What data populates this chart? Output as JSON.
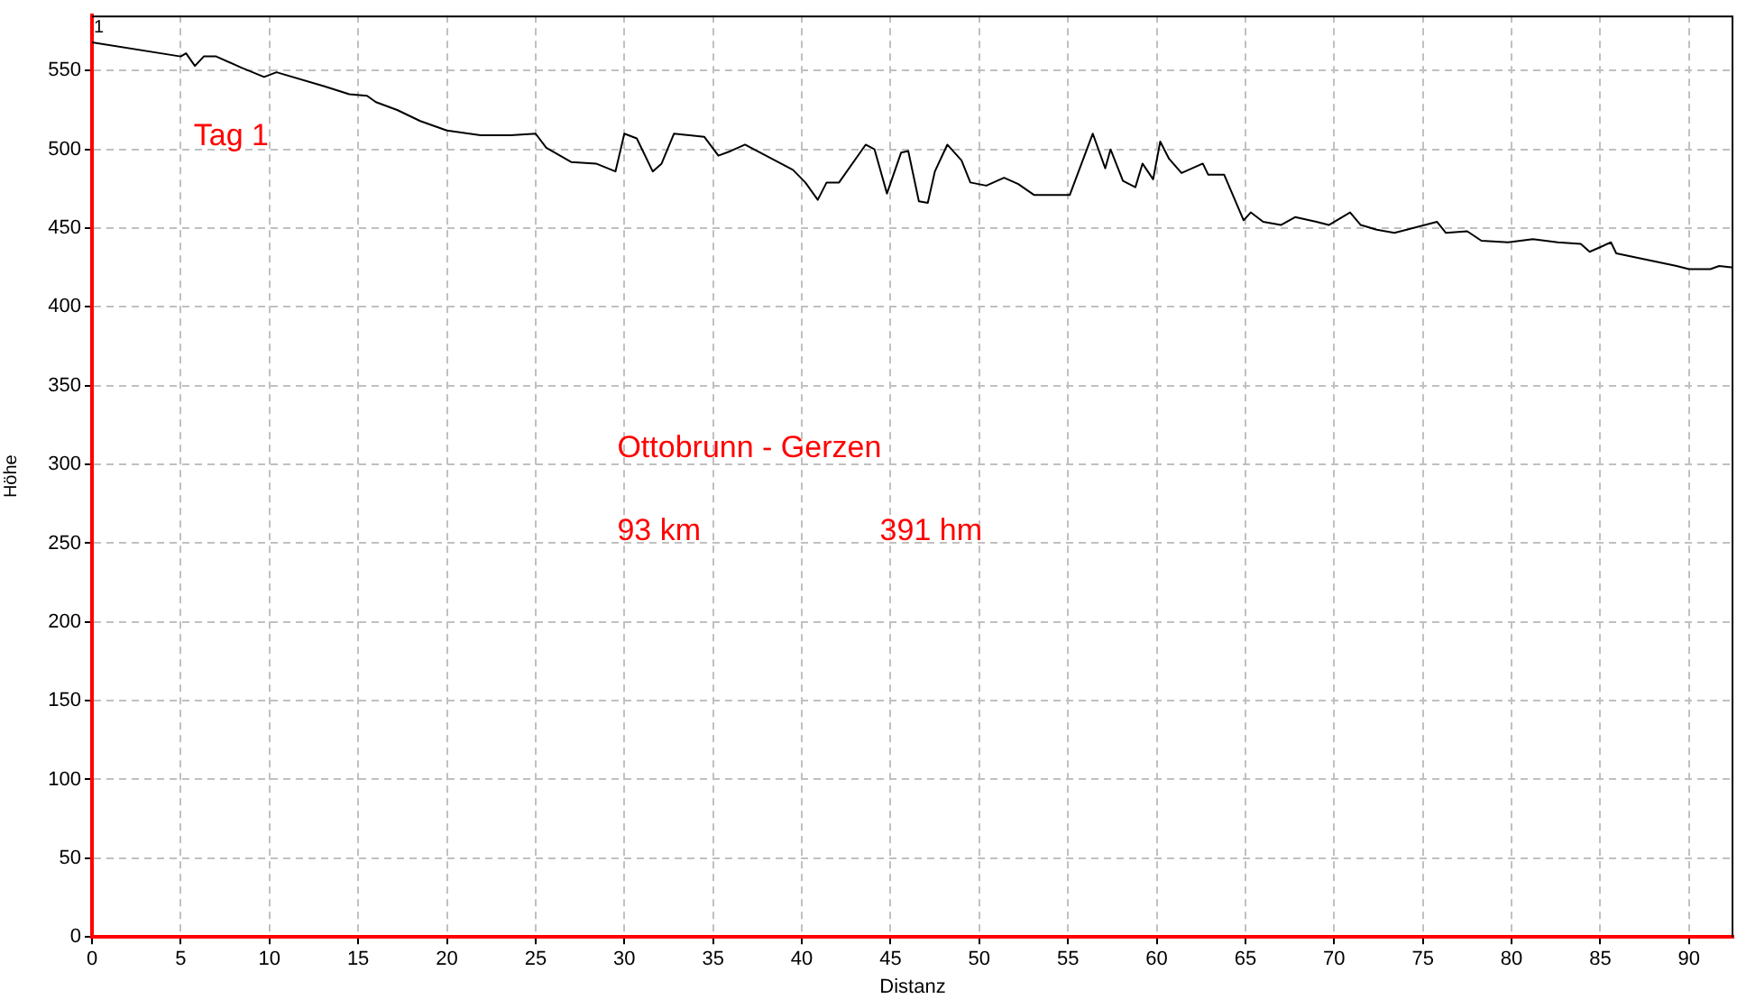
{
  "chart_data": {
    "type": "line",
    "xlabel": "Distanz",
    "ylabel": "Höhe",
    "x": [
      0,
      5.0,
      5.3,
      5.8,
      6.3,
      7.0,
      8.4,
      9.7,
      10.4,
      13.1,
      14.5,
      15.5,
      16.0,
      17.2,
      18.5,
      20.0,
      21.9,
      23.6,
      25.0,
      25.6,
      27.0,
      28.4,
      29.5,
      30.0,
      30.7,
      31.6,
      32.1,
      32.8,
      34.5,
      35.3,
      36.0,
      36.8,
      39.5,
      40.2,
      40.9,
      41.4,
      42.1,
      43.6,
      44.1,
      44.8,
      45.6,
      46.0,
      46.6,
      47.1,
      47.5,
      48.2,
      49.0,
      49.5,
      50.4,
      51.4,
      52.2,
      53.1,
      54.4,
      55.1,
      55.6,
      56.4,
      57.1,
      57.4,
      58.1,
      58.8,
      59.2,
      59.8,
      60.2,
      60.7,
      61.4,
      62.6,
      62.9,
      63.8,
      64.9,
      65.3,
      66.0,
      67.0,
      67.8,
      69.0,
      69.7,
      70.9,
      71.5,
      72.4,
      73.4,
      75.8,
      76.3,
      77.5,
      78.3,
      79.8,
      81.2,
      82.6,
      83.9,
      84.4,
      85.6,
      85.9,
      87.6,
      89.3,
      90.0,
      91.2,
      91.7,
      92.5
    ],
    "series": [
      {
        "color": "#000000",
        "values": [
          568,
          559,
          561,
          553,
          559,
          559,
          552,
          546,
          549,
          540,
          535,
          534,
          530,
          525,
          518,
          512,
          509,
          509,
          510,
          501,
          492,
          491,
          486,
          510,
          507,
          486,
          491,
          510,
          508,
          496,
          499,
          503,
          487,
          479,
          468,
          479,
          479,
          503,
          500,
          472,
          498,
          499,
          467,
          466,
          486,
          503,
          493,
          479,
          477,
          482,
          478,
          471,
          471,
          471,
          486,
          510,
          488,
          500,
          480,
          476,
          491,
          481,
          505,
          494,
          485,
          491,
          484,
          484,
          455,
          460,
          454,
          452,
          457,
          454,
          452,
          460,
          452,
          449,
          447,
          454,
          447,
          448,
          442,
          441,
          443,
          441,
          440,
          435,
          441,
          434,
          430,
          426,
          424,
          424,
          426,
          425
        ]
      }
    ],
    "xlim": [
      0,
      92.5
    ],
    "ylim": [
      0,
      585
    ],
    "xticks": [
      0,
      5,
      10,
      15,
      20,
      25,
      30,
      35,
      40,
      45,
      50,
      55,
      60,
      65,
      70,
      75,
      80,
      85,
      90
    ],
    "yticks": [
      0,
      50,
      100,
      150,
      200,
      250,
      300,
      350,
      400,
      450,
      500,
      550
    ],
    "grid": true,
    "legend": false,
    "marker": "none",
    "line_style": "solid",
    "annotations": [
      {
        "text": "1",
        "x": 0,
        "y": 568
      },
      "Tag 1",
      "Ottobrunn - Gerzen",
      "93 km",
      "391 hm"
    ]
  }
}
